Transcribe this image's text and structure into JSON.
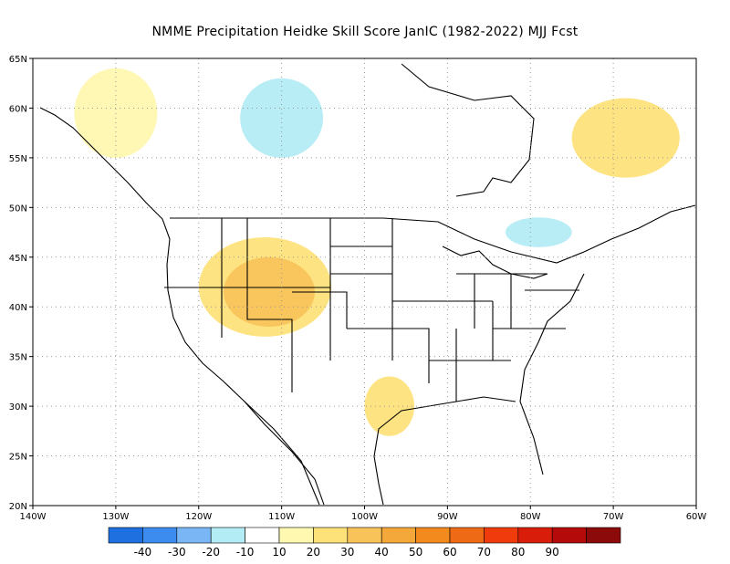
{
  "title": "NMME  Precipitation Heidke Skill Score JanIC (1982-2022) MJJ Fcst",
  "map": {
    "lon_range": [
      -140,
      -60
    ],
    "lat_range": [
      20,
      65
    ],
    "x_ticks": [
      {
        "lon": -140,
        "label": "140W"
      },
      {
        "lon": -130,
        "label": "130W"
      },
      {
        "lon": -120,
        "label": "120W"
      },
      {
        "lon": -110,
        "label": "110W"
      },
      {
        "lon": -100,
        "label": "100W"
      },
      {
        "lon": -90,
        "label": "90W"
      },
      {
        "lon": -80,
        "label": "80W"
      },
      {
        "lon": -70,
        "label": "70W"
      },
      {
        "lon": -60,
        "label": "60W"
      }
    ],
    "y_ticks": [
      {
        "lat": 65,
        "label": "65N"
      },
      {
        "lat": 60,
        "label": "60N"
      },
      {
        "lat": 55,
        "label": "55N"
      },
      {
        "lat": 50,
        "label": "50N"
      },
      {
        "lat": 45,
        "label": "45N"
      },
      {
        "lat": 40,
        "label": "40N"
      },
      {
        "lat": 35,
        "label": "35N"
      },
      {
        "lat": 30,
        "label": "30N"
      },
      {
        "lat": 25,
        "label": "25N"
      },
      {
        "lat": 20,
        "label": "20N"
      }
    ],
    "grid": true,
    "colors": {
      "hss_-40": "#1e6fe0",
      "hss_-30": "#3c8cf0",
      "hss_-20": "#7ab6f5",
      "hss_-10": "#b4ecf5",
      "hss_0": "#ffffff",
      "hss_10": "#fff8b0",
      "hss_20": "#fde27a",
      "hss_30": "#f8c45a",
      "hss_40": "#f5a83a",
      "land_outline": "#000000"
    },
    "skill_regions": [
      {
        "category": "10",
        "lon": [
          -135,
          -125
        ],
        "lat": [
          55,
          64
        ]
      },
      {
        "category": "20",
        "lon": [
          -120,
          -104
        ],
        "lat": [
          37,
          47
        ]
      },
      {
        "category": "30",
        "lon": [
          -117,
          -106
        ],
        "lat": [
          38,
          45
        ]
      },
      {
        "category": "20",
        "lon": [
          -100,
          -94
        ],
        "lat": [
          27,
          33
        ]
      },
      {
        "category": "20",
        "lon": [
          -75,
          -62
        ],
        "lat": [
          53,
          61
        ]
      },
      {
        "category": "-10",
        "lon": [
          -115,
          -105
        ],
        "lat": [
          55,
          63
        ]
      },
      {
        "category": "-10",
        "lon": [
          -83,
          -75
        ],
        "lat": [
          46,
          49
        ]
      }
    ]
  },
  "colorbar": {
    "labels": [
      {
        "value": -40,
        "label": "-40"
      },
      {
        "value": -30,
        "label": "-30"
      },
      {
        "value": -20,
        "label": "-20"
      },
      {
        "value": -10,
        "label": "-10"
      },
      {
        "value": 10,
        "label": "10"
      },
      {
        "value": 20,
        "label": "20"
      },
      {
        "value": 30,
        "label": "30"
      },
      {
        "value": 40,
        "label": "40"
      },
      {
        "value": 50,
        "label": "50"
      },
      {
        "value": 60,
        "label": "60"
      },
      {
        "value": 70,
        "label": "70"
      },
      {
        "value": 80,
        "label": "80"
      },
      {
        "value": 90,
        "label": "90"
      }
    ],
    "colors": [
      "#1e6fe0",
      "#3c8cf0",
      "#7ab6f5",
      "#b4ecf5",
      "#ffffff",
      "#fff8b0",
      "#fde27a",
      "#f8c45a",
      "#f5a83a",
      "#f28a1e",
      "#ee6a14",
      "#f03c0c",
      "#d81e0a",
      "#b40a0a",
      "#8c0a0a"
    ]
  }
}
